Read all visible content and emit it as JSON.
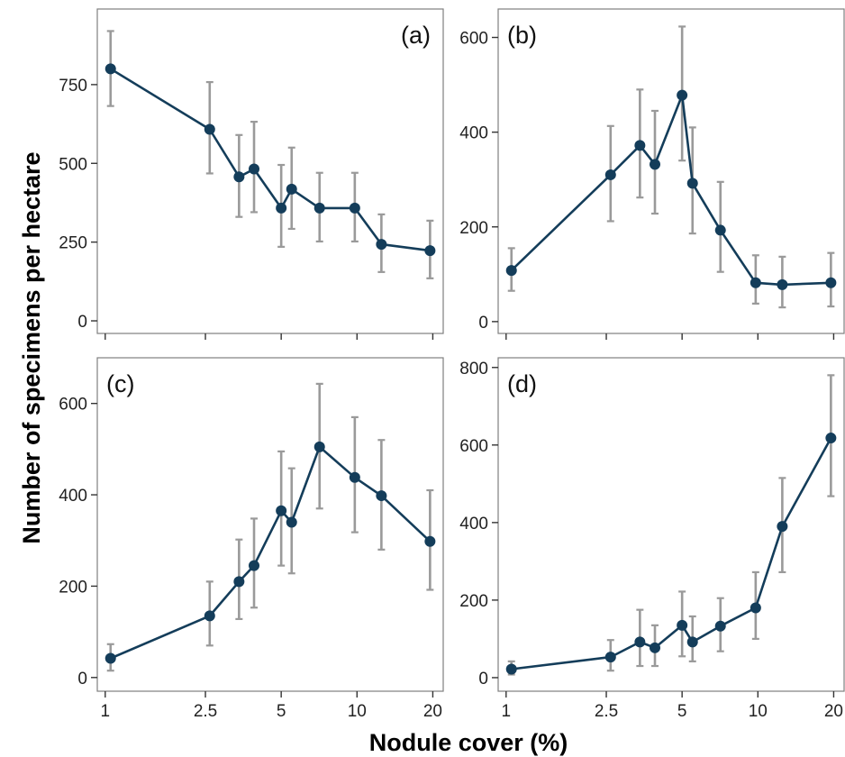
{
  "figure": {
    "ylabel": "Number of specimens per hectare",
    "xlabel": "Nodule cover (%)",
    "x_ticks": [
      1,
      2.5,
      5,
      10,
      20
    ],
    "x_tick_labels": [
      "1",
      "2.5",
      "5",
      "10",
      "20"
    ],
    "x_scale": "log",
    "colors": {
      "line": "#143d5a",
      "errorbar": "#9a9a9a",
      "frame": "#7f7f7f"
    }
  },
  "chart_data": [
    {
      "type": "line",
      "panel": "(a)",
      "x_scale": "log",
      "xlim": [
        0.93,
        22
      ],
      "ylim": [
        -40,
        990
      ],
      "y_ticks": [
        0,
        250,
        500,
        750
      ],
      "series": [
        {
          "x": [
            1.05,
            2.6,
            3.4,
            3.9,
            5.0,
            5.5,
            7.1,
            9.8,
            12.5,
            19.5
          ],
          "values": [
            800,
            608,
            457,
            482,
            358,
            418,
            358,
            358,
            243,
            223
          ],
          "err_low": [
            682,
            468,
            330,
            345,
            235,
            292,
            252,
            252,
            155,
            135
          ],
          "err_high": [
            920,
            758,
            590,
            632,
            495,
            550,
            470,
            470,
            338,
            318
          ]
        }
      ]
    },
    {
      "type": "line",
      "panel": "(b)",
      "x_scale": "log",
      "xlim": [
        0.93,
        22
      ],
      "ylim": [
        -25,
        660
      ],
      "y_ticks": [
        0,
        200,
        400,
        600
      ],
      "series": [
        {
          "x": [
            1.05,
            2.6,
            3.4,
            3.9,
            5.0,
            5.5,
            7.1,
            9.8,
            12.5,
            19.5
          ],
          "values": [
            108,
            310,
            372,
            332,
            478,
            292,
            193,
            82,
            78,
            82
          ],
          "err_low": [
            65,
            212,
            262,
            228,
            340,
            186,
            105,
            38,
            30,
            32
          ],
          "err_high": [
            155,
            413,
            490,
            445,
            623,
            410,
            295,
            140,
            137,
            145
          ]
        }
      ]
    },
    {
      "type": "line",
      "panel": "(c)",
      "x_scale": "log",
      "xlim": [
        0.93,
        22
      ],
      "ylim": [
        -30,
        700
      ],
      "y_ticks": [
        0,
        200,
        400,
        600
      ],
      "series": [
        {
          "x": [
            1.05,
            2.6,
            3.4,
            3.9,
            5.0,
            5.5,
            7.1,
            9.8,
            12.5,
            19.5
          ],
          "values": [
            42,
            135,
            210,
            245,
            365,
            340,
            505,
            438,
            398,
            298
          ],
          "err_low": [
            15,
            70,
            128,
            153,
            245,
            228,
            370,
            318,
            280,
            192
          ],
          "err_high": [
            73,
            210,
            302,
            348,
            495,
            458,
            643,
            570,
            520,
            410
          ]
        }
      ]
    },
    {
      "type": "line",
      "panel": "(d)",
      "x_scale": "log",
      "xlim": [
        0.93,
        22
      ],
      "ylim": [
        -35,
        825
      ],
      "y_ticks": [
        0,
        200,
        400,
        600,
        800
      ],
      "series": [
        {
          "x": [
            1.05,
            2.6,
            3.4,
            3.9,
            5.0,
            5.5,
            7.1,
            9.8,
            12.5,
            19.5
          ],
          "values": [
            22,
            53,
            92,
            77,
            135,
            92,
            133,
            180,
            390,
            618
          ],
          "err_low": [
            8,
            18,
            30,
            30,
            55,
            42,
            68,
            100,
            272,
            468
          ],
          "err_high": [
            42,
            97,
            175,
            135,
            222,
            158,
            205,
            272,
            515,
            780
          ]
        }
      ]
    }
  ]
}
